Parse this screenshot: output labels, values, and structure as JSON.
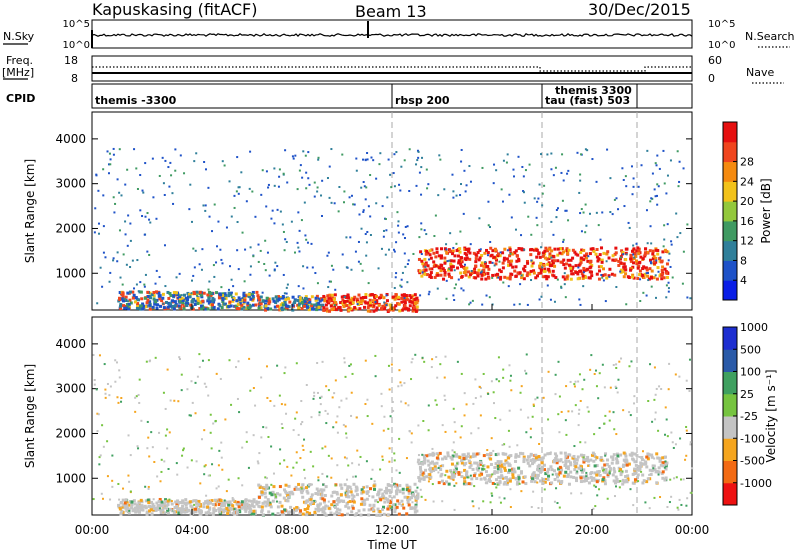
{
  "header": {
    "station": "Kapuskasing (fitACF)",
    "beam": "Beam 13",
    "date": "30/Dec/2015"
  },
  "panels": {
    "nsky": {
      "label": "N.Sky",
      "ticks": [
        "10^5",
        "10^0"
      ],
      "right_ticks": [
        "10^5",
        "10^0"
      ],
      "right_label": "N.Search"
    },
    "freq": {
      "label_line1": "Freq.",
      "label_line2": "[MHz]",
      "ticks": [
        "18",
        "8"
      ],
      "right_ticks": [
        "60",
        "0"
      ],
      "right_label": "Nave"
    },
    "cpid": {
      "label": "CPID",
      "segments": [
        {
          "name": "themis -3300",
          "start_hour": 0
        },
        {
          "name": "rbsp 200",
          "start_hour": 12
        },
        {
          "name": "tau (fast) 503",
          "start_hour": 18
        },
        {
          "name": "themis 3300",
          "start_hour": 18.4
        }
      ]
    }
  },
  "chart_data": [
    {
      "type": "heatmap",
      "quantity": "Power",
      "ylabel": "Slant Range [km]",
      "yticks": [
        1000,
        2000,
        3000,
        4000
      ],
      "ylim": [
        180,
        4600
      ],
      "xlim_hours": [
        0,
        24
      ],
      "colorbar": {
        "label": "Power [dB]",
        "ticks": [
          "4",
          "8",
          "12",
          "16",
          "20",
          "24",
          "28"
        ],
        "colors": [
          "#0a1ee6",
          "#1e52c8",
          "#2f7f9a",
          "#3f9a62",
          "#93c83c",
          "#f2c21a",
          "#f58a0f",
          "#f0451e",
          "#e60f0f"
        ]
      },
      "regions": [
        {
          "t0": 1.0,
          "t1": 6.6,
          "r0": 230,
          "r1": 620,
          "level": "mid"
        },
        {
          "t0": 6.6,
          "t1": 9.2,
          "r0": 210,
          "r1": 520,
          "level": "mid"
        },
        {
          "t0": 9.2,
          "t1": 13.0,
          "r0": 180,
          "r1": 560,
          "level": "high"
        },
        {
          "t0": 13.0,
          "t1": 23.0,
          "r0": 900,
          "r1": 1600,
          "level": "high"
        }
      ]
    },
    {
      "type": "heatmap",
      "quantity": "Velocity",
      "ylabel": "Slant Range [km]",
      "xlabel": "Time UT",
      "yticks": [
        1000,
        2000,
        3000,
        4000
      ],
      "ylim": [
        180,
        4600
      ],
      "xlim_hours": [
        0,
        24
      ],
      "xticks": [
        "00:00",
        "04:00",
        "08:00",
        "12:00",
        "16:00",
        "20:00",
        "00:00"
      ],
      "colorbar": {
        "label": "Velocity [m s⁻¹]",
        "ticks": [
          "-1000",
          "-500",
          "-100",
          "-25",
          "25",
          "100",
          "500",
          "1000"
        ],
        "colors": [
          "#ee1111",
          "#f36a13",
          "#f5a51e",
          "#c4c4c4",
          "#76c440",
          "#3fa060",
          "#2a5aa8",
          "#1d2ed0"
        ]
      },
      "regions": [
        {
          "t0": 1.0,
          "t1": 6.6,
          "r0": 230,
          "r1": 560,
          "level": "ground"
        },
        {
          "t0": 6.6,
          "t1": 13.0,
          "r0": 200,
          "r1": 900,
          "level": "ground"
        },
        {
          "t0": 13.0,
          "t1": 23.0,
          "r0": 900,
          "r1": 1600,
          "level": "ground"
        }
      ]
    }
  ],
  "dashed_markers_hours": [
    12.0,
    18.0,
    21.8
  ]
}
